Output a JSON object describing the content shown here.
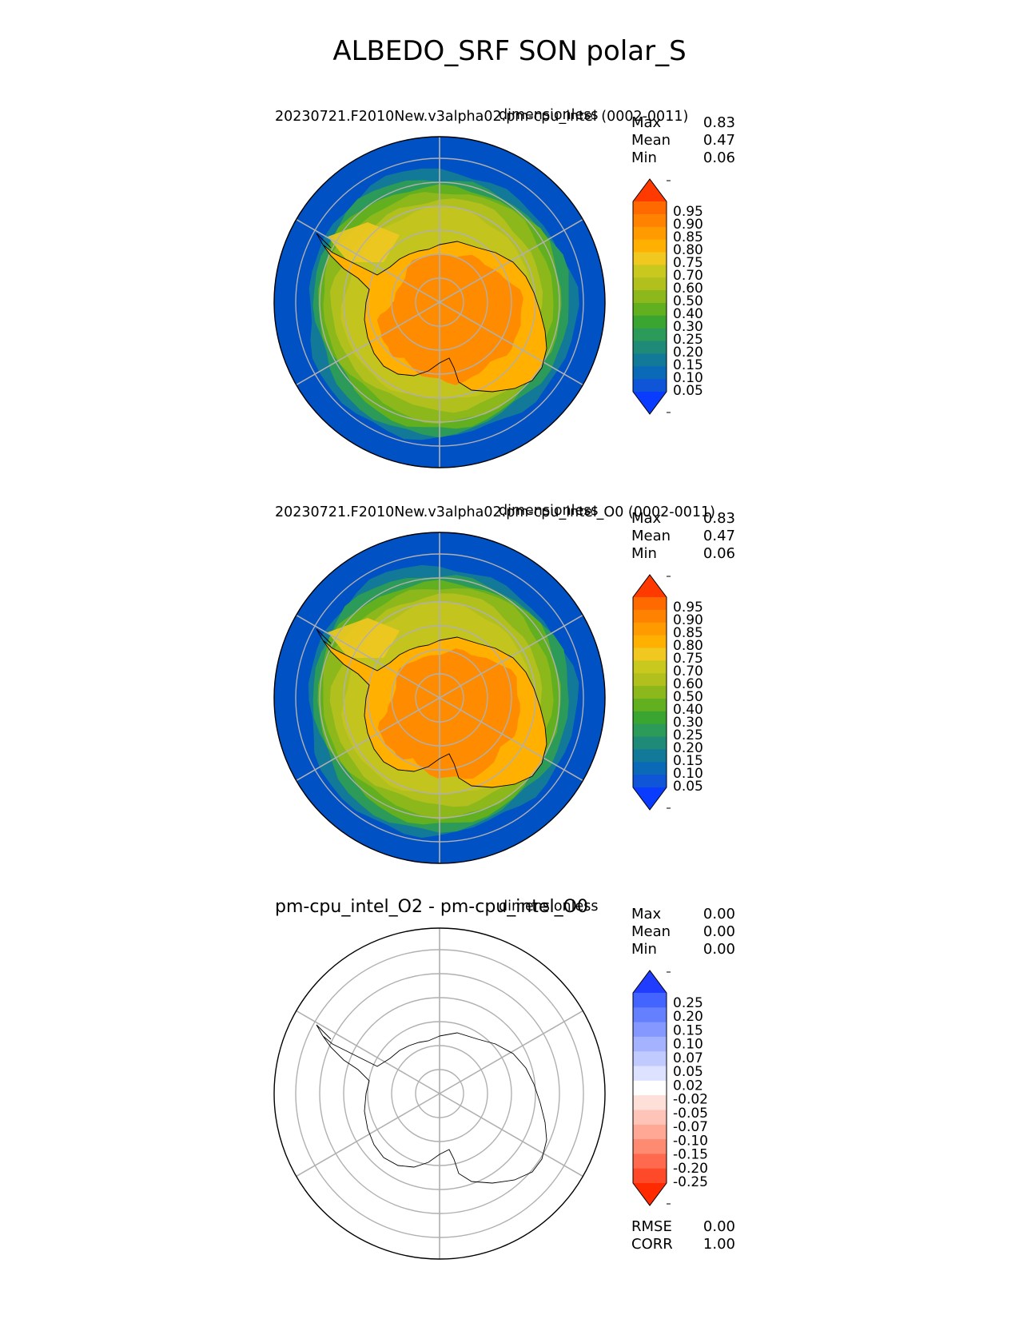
{
  "suptitle": "ALBEDO_SRF SON polar_S",
  "colors": {
    "ocean": "#0051c4",
    "land": "#ff8c00",
    "ice": "#c4c41f",
    "grid": "#b0b0b0",
    "coast": "#000000"
  },
  "panels": [
    {
      "title": "20230721.F2010New.v3alpha02.pm-cpu_intel (0002-0011)",
      "units": "dimensionless",
      "stats": [
        {
          "label": "Max",
          "value": "0.83"
        },
        {
          "label": "Mean",
          "value": "0.47"
        },
        {
          "label": "Min",
          "value": "0.06"
        }
      ]
    },
    {
      "title": "20230721.F2010New.v3alpha02.pm-cpu_intel_O0 (0002-0011)",
      "units": "dimensionless",
      "stats": [
        {
          "label": "Max",
          "value": "0.83"
        },
        {
          "label": "Mean",
          "value": "0.47"
        },
        {
          "label": "Min",
          "value": "0.06"
        }
      ]
    },
    {
      "title": "pm-cpu_intel_O2 - pm-cpu_intel_O0",
      "units": "dimensionless",
      "stats": [
        {
          "label": "Max",
          "value": "0.00"
        },
        {
          "label": "Mean",
          "value": "0.00"
        },
        {
          "label": "Min",
          "value": "0.00"
        }
      ],
      "metrics": [
        {
          "label": "RMSE",
          "value": "0.00"
        },
        {
          "label": "CORR",
          "value": "1.00"
        }
      ]
    }
  ],
  "chart_data": [
    {
      "type": "heatmap",
      "projection": "south-polar-stereographic",
      "title": "20230721.F2010New.v3alpha02.pm-cpu_intel (0002-0011)",
      "units": "dimensionless",
      "colorbar": {
        "ticks": [
          "0.05",
          "0.10",
          "0.15",
          "0.20",
          "0.25",
          "0.30",
          "0.40",
          "0.50",
          "0.60",
          "0.70",
          "0.75",
          "0.80",
          "0.85",
          "0.90",
          "0.95"
        ],
        "colors": [
          "#0a3cff",
          "#0f55d8",
          "#0a6ab8",
          "#127a98",
          "#1f8a78",
          "#2c9a58",
          "#3aa530",
          "#62b020",
          "#8cb81c",
          "#b2c01e",
          "#c8c81e",
          "#f0c820",
          "#ffb000",
          "#ff9a00",
          "#ff8200",
          "#ff6a00",
          "#ff3a00"
        ]
      }
    },
    {
      "type": "heatmap",
      "projection": "south-polar-stereographic",
      "title": "20230721.F2010New.v3alpha02.pm-cpu_intel_O0 (0002-0011)",
      "units": "dimensionless",
      "colorbar": {
        "ticks": [
          "0.05",
          "0.10",
          "0.15",
          "0.20",
          "0.25",
          "0.30",
          "0.40",
          "0.50",
          "0.60",
          "0.70",
          "0.75",
          "0.80",
          "0.85",
          "0.90",
          "0.95"
        ],
        "colors": [
          "#0a3cff",
          "#0f55d8",
          "#0a6ab8",
          "#127a98",
          "#1f8a78",
          "#2c9a58",
          "#3aa530",
          "#62b020",
          "#8cb81c",
          "#b2c01e",
          "#c8c81e",
          "#f0c820",
          "#ffb000",
          "#ff9a00",
          "#ff8200",
          "#ff6a00",
          "#ff3a00"
        ]
      }
    },
    {
      "type": "heatmap",
      "projection": "south-polar-stereographic",
      "title": "pm-cpu_intel_O2 - pm-cpu_intel_O0",
      "units": "dimensionless",
      "colorbar": {
        "ticks": [
          "0.25",
          "0.20",
          "0.15",
          "0.10",
          "0.07",
          "0.05",
          "0.02",
          "-0.02",
          "-0.05",
          "-0.07",
          "-0.10",
          "-0.15",
          "-0.20",
          "-0.25"
        ],
        "colors": [
          "#ff2a00",
          "#ff4a2a",
          "#ff6a4e",
          "#ff8a72",
          "#ffa896",
          "#ffc4b8",
          "#ffe0d8",
          "#ffffff",
          "#dce2ff",
          "#c0caff",
          "#a4b2ff",
          "#8498ff",
          "#6480ff",
          "#4464ff",
          "#1f3cff"
        ]
      }
    }
  ]
}
